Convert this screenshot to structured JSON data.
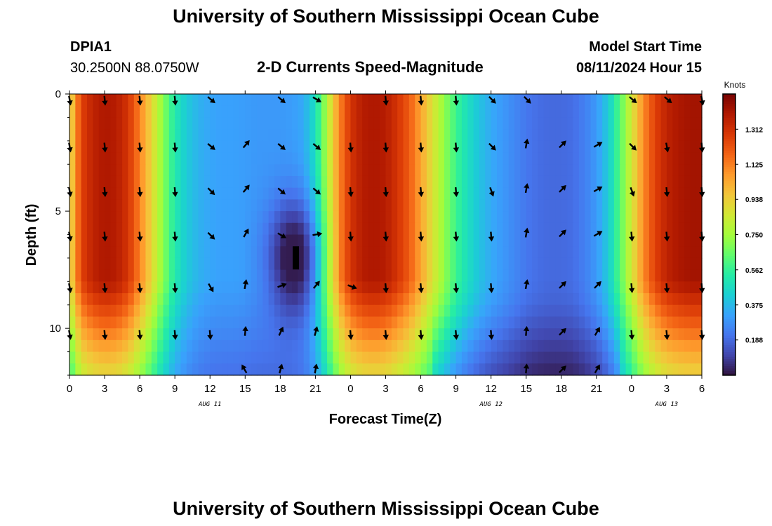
{
  "header": {
    "title": "University of Southern Mississippi Ocean Cube",
    "station_id": "DPIA1",
    "station_coords": "30.2500N  88.0750W",
    "plot_title": "2-D Currents Speed-Magnitude",
    "model_start_label": "Model Start Time",
    "model_start_value": "08/11/2024 Hour 15"
  },
  "footer": {
    "title": "University of Southern Mississippi Ocean Cube"
  },
  "colorbar": {
    "unit_label": "Knots",
    "ticks": [
      0.188,
      0.375,
      0.562,
      0.75,
      0.938,
      1.125,
      1.312
    ],
    "tick_labels": [
      "0.188",
      "0.375",
      "0.562",
      "0.750",
      "0.938",
      "1.125",
      "1.312"
    ],
    "range": [
      0,
      1.5
    ],
    "colormap": [
      "#30123b",
      "#4145ab",
      "#4675ed",
      "#39a2fc",
      "#1bcfd4",
      "#24eca6",
      "#61fc6c",
      "#a4fc3b",
      "#d1e834",
      "#f3c63a",
      "#fe9b2d",
      "#f36315",
      "#d93806",
      "#b11901",
      "#7a0402"
    ]
  },
  "chart_data": {
    "type": "heatmap",
    "title": "2-D Currents Speed-Magnitude",
    "xlabel": "Forecast Time(Z)",
    "ylabel": "Depth (ft)",
    "x_range_hours": [
      0,
      54
    ],
    "y_range_ft": [
      0,
      12
    ],
    "x_ticks_hours": [
      0,
      3,
      6,
      9,
      12,
      15,
      18,
      21,
      24,
      27,
      30,
      33,
      36,
      39,
      42,
      45,
      48,
      51,
      54
    ],
    "x_tick_labels": [
      "0",
      "3",
      "6",
      "9",
      "12",
      "15",
      "18",
      "21",
      "0",
      "3",
      "6",
      "9",
      "12",
      "15",
      "18",
      "21",
      "0",
      "3",
      "6"
    ],
    "y_ticks": [
      0,
      5,
      10
    ],
    "y_tick_labels": [
      "0",
      "5",
      "10"
    ],
    "date_labels": [
      {
        "hour": 12,
        "text": "AUG 11"
      },
      {
        "hour": 36,
        "text": "AUG 12"
      },
      {
        "hour": 51,
        "text": "AUG 13"
      }
    ],
    "speed_profile_hours": [
      0,
      1,
      2,
      3,
      4,
      5,
      6,
      7,
      8,
      9,
      10,
      11,
      12,
      13,
      14,
      15,
      16,
      17,
      18,
      19,
      20,
      21,
      22,
      23,
      24,
      25,
      26,
      27,
      28,
      29,
      30,
      31,
      32,
      33,
      34,
      35,
      36,
      37,
      38,
      39,
      40,
      41,
      42,
      43,
      44,
      45,
      46,
      47,
      48,
      49,
      50,
      51,
      52,
      53,
      54
    ],
    "surface_speed_knots": [
      0.88,
      1.26,
      1.36,
      1.4,
      1.38,
      1.3,
      1.12,
      0.92,
      0.7,
      0.52,
      0.42,
      0.36,
      0.33,
      0.32,
      0.32,
      0.31,
      0.3,
      0.3,
      0.3,
      0.31,
      0.34,
      0.48,
      0.78,
      1.1,
      1.3,
      1.38,
      1.4,
      1.38,
      1.3,
      1.2,
      1.05,
      0.88,
      0.72,
      0.58,
      0.48,
      0.4,
      0.34,
      0.3,
      0.26,
      0.22,
      0.2,
      0.19,
      0.19,
      0.2,
      0.24,
      0.3,
      0.42,
      0.62,
      0.86,
      1.1,
      1.26,
      1.36,
      1.4,
      1.42,
      1.42
    ],
    "speed_minimum_knots": 0.02,
    "vector_rows_ft": [
      0.2,
      2.2,
      4.1,
      6.0,
      8.2,
      10.2,
      11.8
    ],
    "vector_cols_hours": [
      0,
      3,
      6,
      9,
      12,
      15,
      18,
      21,
      24,
      27,
      30,
      33,
      36,
      39,
      42,
      45,
      48,
      51,
      54
    ],
    "vector_direction_deg": [
      [
        170,
        175,
        175,
        175,
        130,
        null,
        130,
        120,
        null,
        175,
        175,
        175,
        135,
        135,
        null,
        null,
        130,
        130,
        170
      ],
      [
        170,
        175,
        175,
        175,
        130,
        40,
        130,
        130,
        175,
        175,
        175,
        175,
        135,
        10,
        45,
        60,
        135,
        170,
        175
      ],
      [
        170,
        175,
        175,
        175,
        135,
        40,
        130,
        130,
        175,
        175,
        175,
        175,
        160,
        10,
        45,
        60,
        160,
        175,
        175
      ],
      [
        170,
        175,
        175,
        175,
        135,
        30,
        120,
        80,
        175,
        175,
        175,
        175,
        175,
        10,
        45,
        60,
        175,
        175,
        175
      ],
      [
        170,
        175,
        175,
        175,
        150,
        10,
        70,
        40,
        110,
        175,
        175,
        175,
        175,
        10,
        45,
        45,
        175,
        175,
        175
      ],
      [
        170,
        175,
        175,
        175,
        175,
        5,
        25,
        15,
        175,
        175,
        175,
        175,
        175,
        5,
        45,
        30,
        175,
        175,
        175
      ],
      [
        null,
        null,
        null,
        null,
        null,
        330,
        15,
        10,
        null,
        null,
        null,
        null,
        null,
        5,
        45,
        30,
        null,
        null,
        null
      ]
    ]
  }
}
